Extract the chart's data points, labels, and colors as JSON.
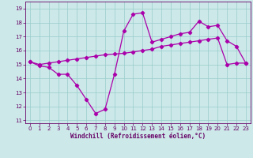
{
  "x": [
    0,
    1,
    2,
    3,
    4,
    5,
    6,
    7,
    8,
    9,
    10,
    11,
    12,
    13,
    14,
    15,
    16,
    17,
    18,
    19,
    20,
    21,
    22,
    23
  ],
  "line_main": [
    15.2,
    14.9,
    14.8,
    14.3,
    14.3,
    13.5,
    12.5,
    11.5,
    11.8,
    14.3,
    17.4,
    18.6,
    18.7,
    16.6,
    16.8,
    17.0,
    17.2,
    17.3,
    18.1,
    17.7,
    17.8,
    16.7,
    16.3,
    15.1
  ],
  "line_ref": [
    15.2,
    15.0,
    15.1,
    15.2,
    15.3,
    15.4,
    15.5,
    15.6,
    15.7,
    15.75,
    15.8,
    15.9,
    16.0,
    16.1,
    16.3,
    16.4,
    16.5,
    16.6,
    16.7,
    16.8,
    16.9,
    15.0,
    15.1,
    15.1
  ],
  "background_color": "#cce8e8",
  "line_color": "#aa00aa",
  "grid_color": "#99cccc",
  "ylabel_ticks": [
    11,
    12,
    13,
    14,
    15,
    16,
    17,
    18,
    19
  ],
  "xlabel": "Windchill (Refroidissement éolien,°C)",
  "xlim": [
    -0.5,
    23.5
  ],
  "ylim": [
    10.8,
    19.5
  ],
  "font_color": "#660066",
  "tick_fontsize": 5,
  "xlabel_fontsize": 5.5
}
